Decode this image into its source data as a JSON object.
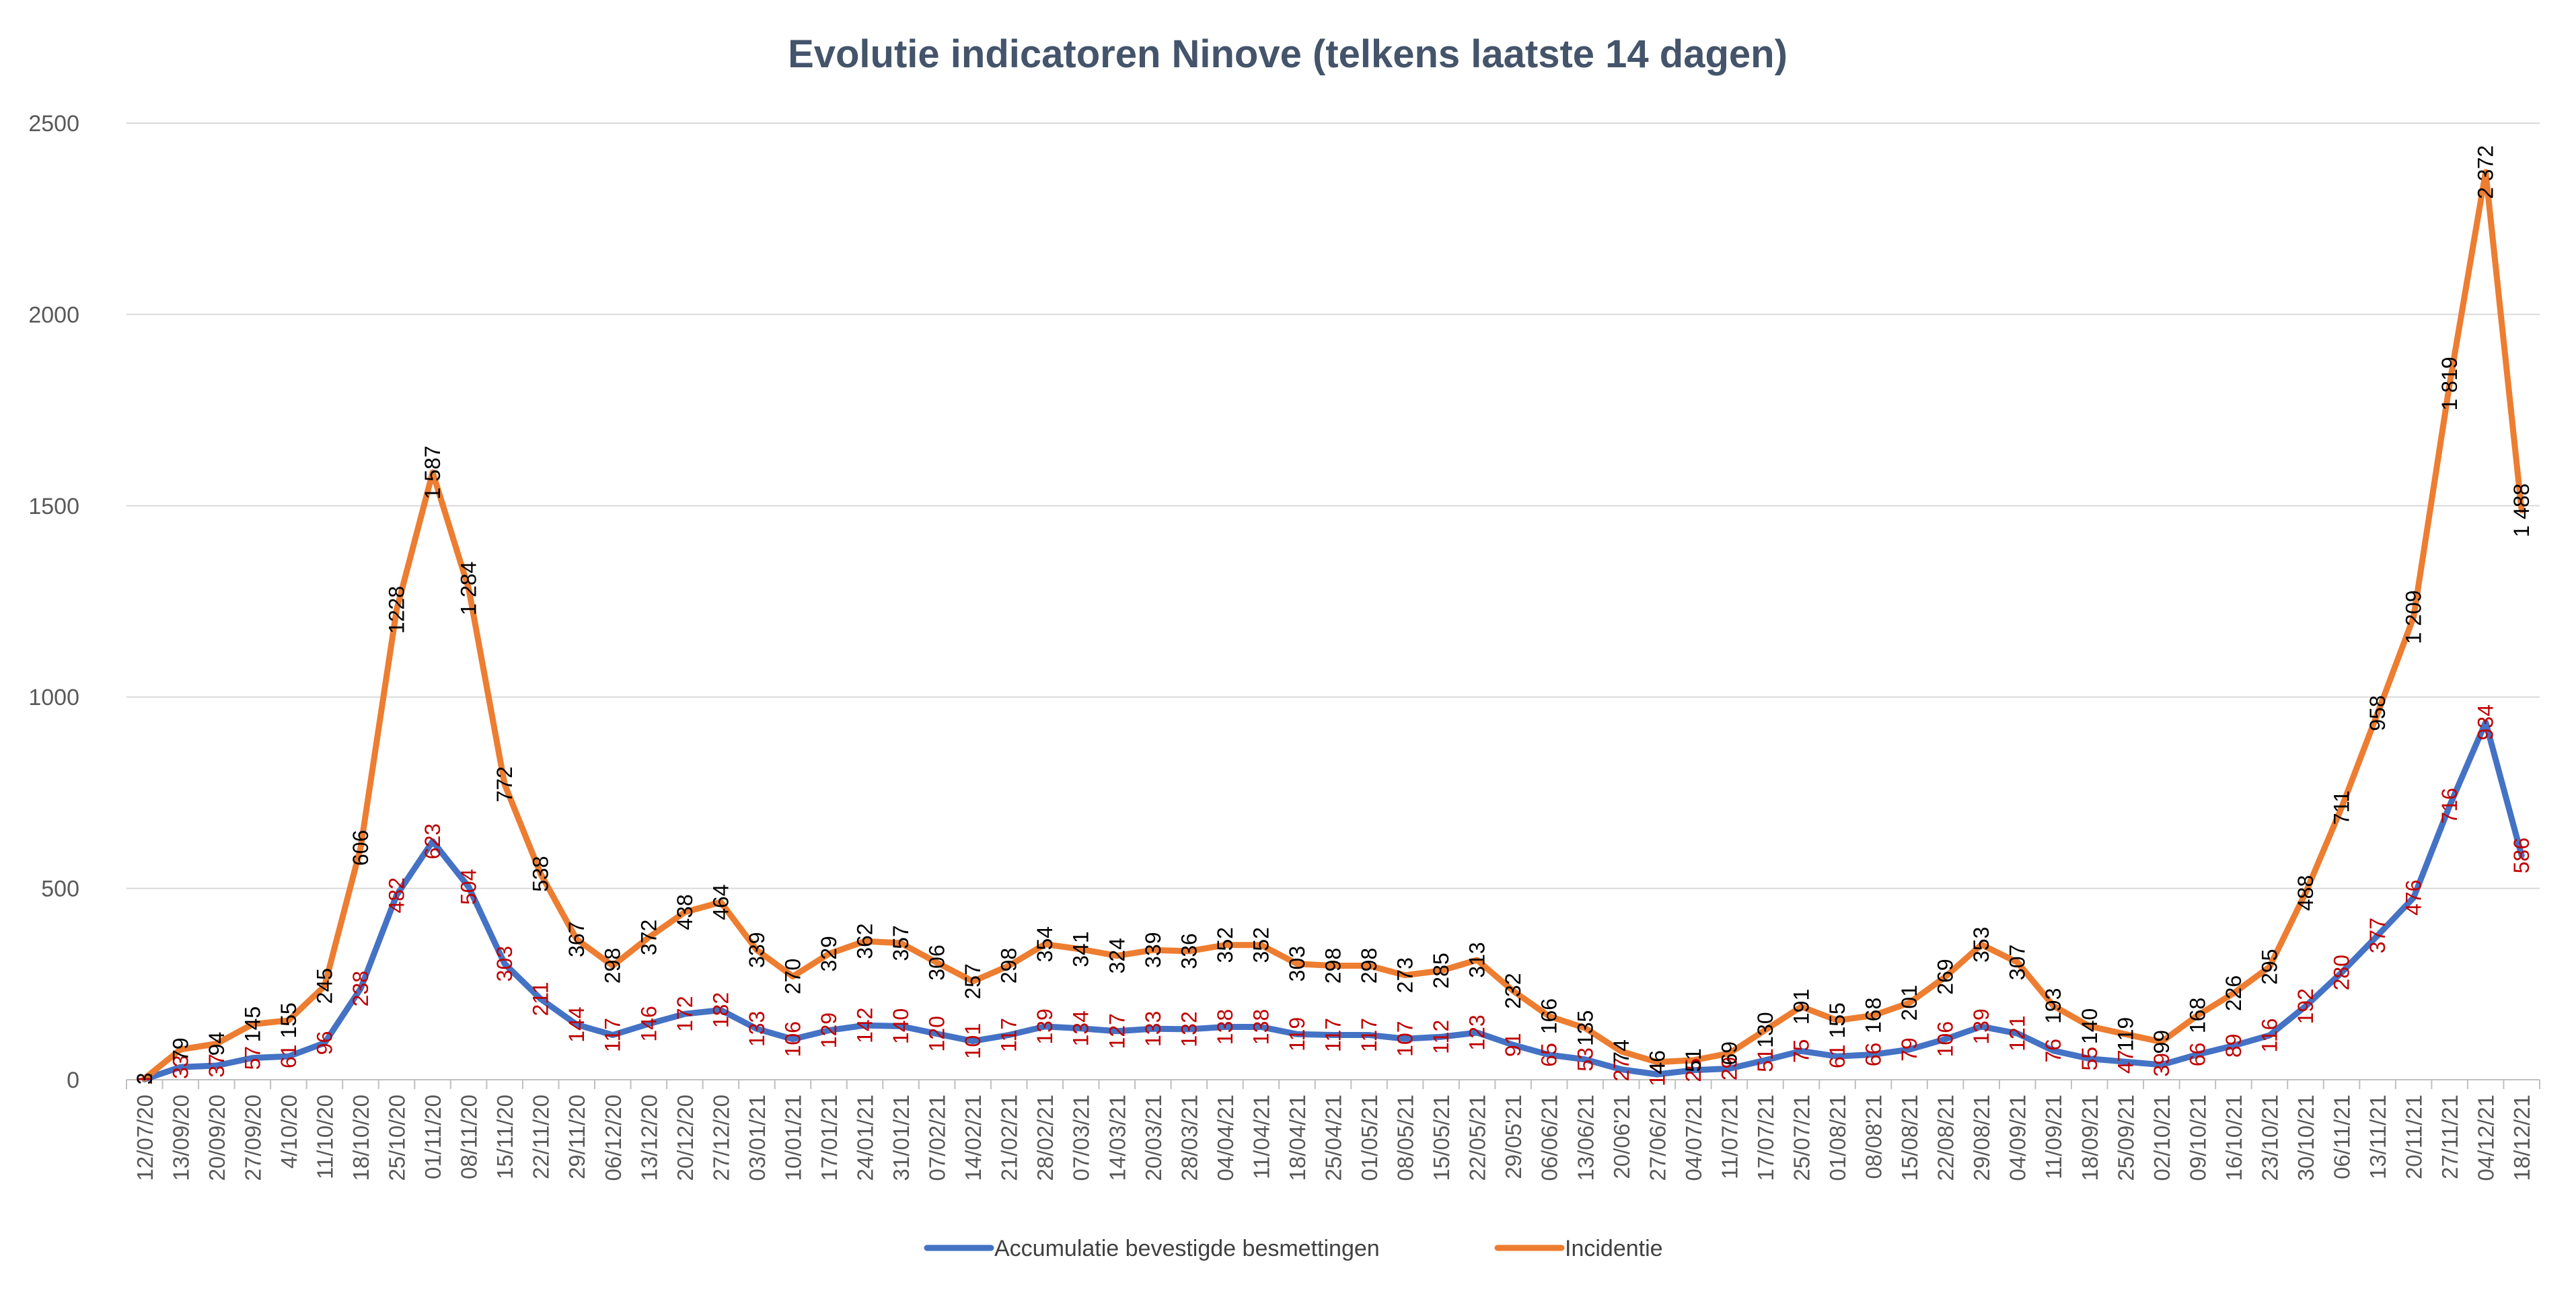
{
  "chart_data": {
    "type": "line",
    "title": "Evolutie indicatoren Ninove (telkens laatste 14 dagen)",
    "xlabel": "",
    "ylabel": "",
    "ylim": [
      0,
      2500
    ],
    "yticks": [
      0,
      500,
      1000,
      1500,
      2000,
      2500
    ],
    "grid": true,
    "legend_position": "bottom",
    "categories": [
      "12/07/20",
      "13/09/20",
      "20/09/20",
      "27/09/20",
      "4/10/20",
      "11/10/20",
      "18/10/20",
      "25/10/20",
      "01/11/20",
      "08/11/20",
      "15/11/20",
      "22/11/20",
      "29/11/20",
      "06/12/20",
      "13/12/20",
      "20/12/20",
      "27/12/20",
      "03/01/21",
      "10/01/21",
      "17/01/21",
      "24/01/21",
      "31/01/21",
      "07/02/21",
      "14/02/21",
      "21/02/21",
      "28/02/21",
      "07/03/21",
      "14/03/21",
      "20/03/21",
      "28/03/21",
      "04/04/21",
      "11/04/21",
      "18/04/21",
      "25/04/21",
      "01/05/21",
      "08/05/21",
      "15/05/21",
      "22/05/21",
      "29/05'21",
      "06/06/21",
      "13/06/21",
      "20/06'21",
      "27/06/21",
      "04/07/21",
      "11/07/21",
      "17/07/21",
      "25/07/21",
      "01/08/21",
      "08/08'21",
      "15/08/21",
      "22/08/21",
      "29/08/21",
      "04/09/21",
      "11/09/21",
      "18/09/21",
      "25/09/21",
      "02/10/21",
      "09/10/21",
      "16/10/21",
      "23/10/21",
      "30/10/21",
      "06/11/21",
      "13/11/21",
      "20/11/21",
      "27/11/21",
      "04/12/21",
      "18/12/21"
    ],
    "series": [
      {
        "name": "Accumulatie bevestigde besmettingen",
        "color": "#4472c4",
        "label_color": "#c00000",
        "values": [
          1,
          33,
          37,
          57,
          61,
          96,
          238,
          482,
          623,
          504,
          303,
          211,
          144,
          117,
          146,
          172,
          182,
          133,
          106,
          129,
          142,
          140,
          120,
          101,
          117,
          139,
          134,
          127,
          133,
          132,
          138,
          138,
          119,
          117,
          117,
          107,
          112,
          123,
          91,
          65,
          53,
          27,
          14,
          25,
          29,
          51,
          75,
          61,
          66,
          79,
          106,
          139,
          121,
          76,
          55,
          47,
          39,
          66,
          89,
          116,
          192,
          280,
          377,
          476,
          716,
          934,
          586
        ],
        "labels": [
          "1",
          "33",
          "37",
          "57",
          "61",
          "96",
          "238",
          "482",
          "623",
          "504",
          "303",
          "211",
          "144",
          "117",
          "146",
          "172",
          "182",
          "133",
          "106",
          "129",
          "142",
          "140",
          "120",
          "101",
          "117",
          "139",
          "134",
          "127",
          "133",
          "132",
          "138",
          "138",
          "119",
          "117",
          "117",
          "107",
          "112",
          "123",
          "91",
          "65",
          "53",
          "27",
          "14",
          "25",
          "29",
          "51",
          "75",
          "61",
          "66",
          "79",
          "106",
          "139",
          "121",
          "76",
          "55",
          "47",
          "39",
          "66",
          "89",
          "116",
          "192",
          "280",
          "377",
          "476",
          "716",
          "934",
          "586"
        ]
      },
      {
        "name": "Incidentie",
        "color": "#ed7d31",
        "label_color": "#000000",
        "values": [
          3,
          79,
          94,
          145,
          155,
          245,
          606,
          1228,
          1587,
          1284,
          772,
          538,
          367,
          298,
          372,
          438,
          464,
          339,
          270,
          329,
          362,
          357,
          306,
          257,
          298,
          354,
          341,
          324,
          339,
          336,
          352,
          352,
          303,
          298,
          298,
          273,
          285,
          313,
          232,
          166,
          135,
          74,
          46,
          51,
          69,
          130,
          191,
          155,
          168,
          201,
          269,
          353,
          307,
          193,
          140,
          119,
          99,
          168,
          226,
          295,
          488,
          711,
          958,
          1209,
          1819,
          2372,
          1488
        ],
        "labels": [
          "3",
          "79",
          "94",
          "145",
          "155",
          "245",
          "606",
          "1228",
          "1 587",
          "1 284",
          "772",
          "538",
          "367",
          "298",
          "372",
          "438",
          "464",
          "339",
          "270",
          "329",
          "362",
          "357",
          "306",
          "257",
          "298",
          "354",
          "341",
          "324",
          "339",
          "336",
          "352",
          "352",
          "303",
          "298",
          "298",
          "273",
          "285",
          "313",
          "232",
          "166",
          "135",
          "74",
          "46",
          "51",
          "69",
          "130",
          "191",
          "155",
          "168",
          "201",
          "269",
          "353",
          "307",
          "193",
          "140",
          "119",
          "99",
          "168",
          "226",
          "295",
          "488",
          "711",
          "958",
          "1 209",
          "1 819",
          "2 372",
          "1 488"
        ]
      }
    ]
  }
}
